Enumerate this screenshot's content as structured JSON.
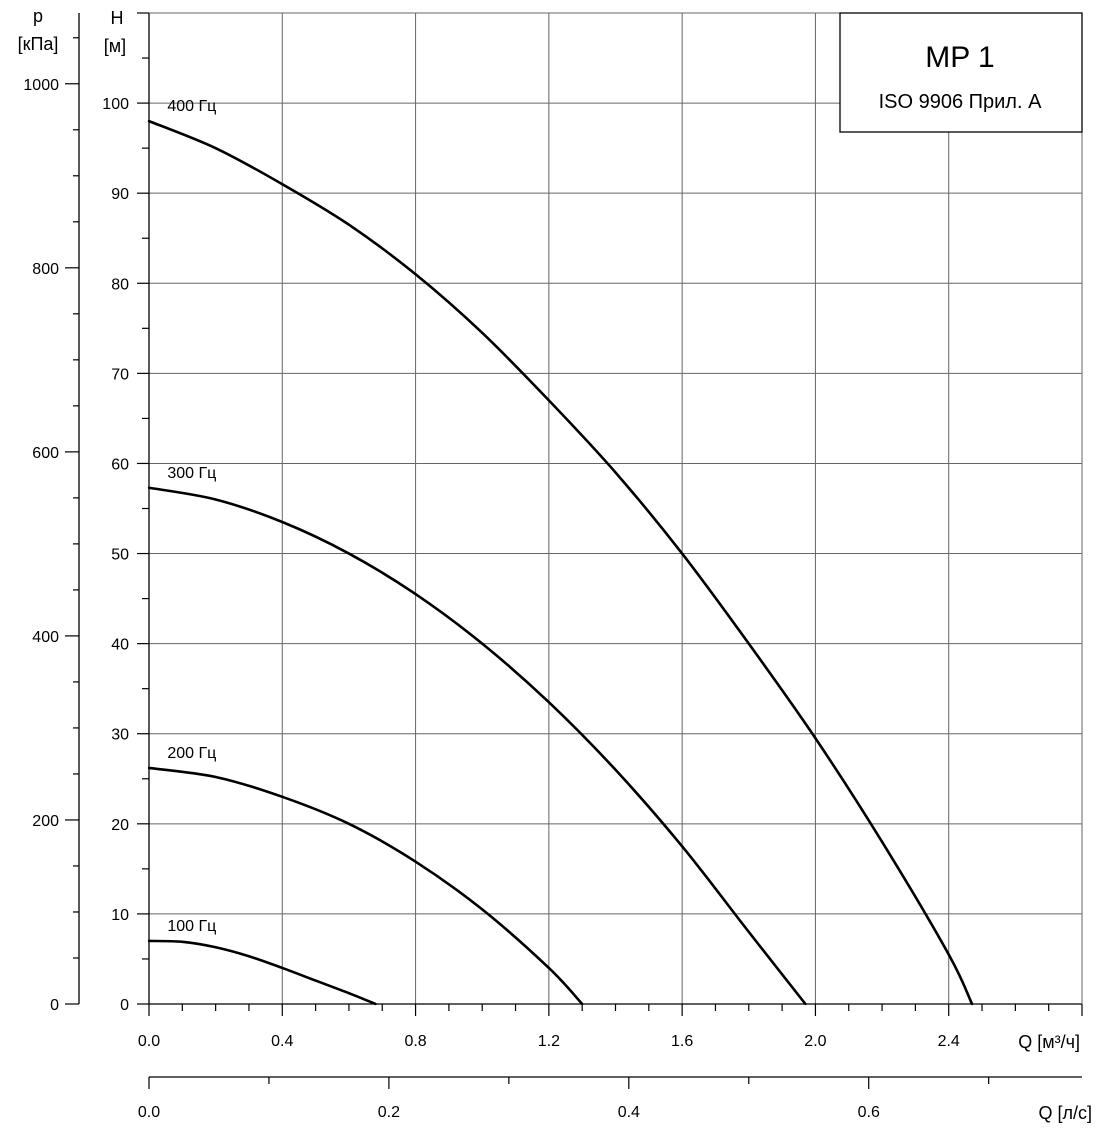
{
  "chart_data": {
    "type": "line",
    "title": "MP 1",
    "subtitle": "ISO 9906 Прил. A",
    "x_axis": {
      "label": "Q [м³/ч]",
      "range": [
        0,
        2.8
      ],
      "ticks": [
        0.0,
        0.4,
        0.8,
        1.2,
        1.6,
        2.0,
        2.4
      ],
      "tick_labels": [
        "0.0",
        "0.4",
        "0.8",
        "1.2",
        "1.6",
        "2.0",
        "2.4"
      ],
      "minor_step": 0.1
    },
    "x2_axis": {
      "label": "Q [л/с]",
      "range": [
        0,
        0.7778
      ],
      "ticks": [
        0.0,
        0.2,
        0.4,
        0.6
      ],
      "tick_labels": [
        "0.0",
        "0.2",
        "0.4",
        "0.6"
      ],
      "minor_step": 0.1
    },
    "y_axis": {
      "label_line1": "H",
      "label_line2": "[м]",
      "range": [
        0,
        110
      ],
      "ticks": [
        0,
        10,
        20,
        30,
        40,
        50,
        60,
        70,
        80,
        90,
        100
      ],
      "tick_labels": [
        "0",
        "10",
        "20",
        "30",
        "40",
        "50",
        "60",
        "70",
        "80",
        "90",
        "100"
      ],
      "minor_step": 5
    },
    "y2_axis": {
      "label_line1": "p",
      "label_line2": "[кПа]",
      "ticks": [
        0,
        200,
        400,
        600,
        800,
        1000
      ],
      "tick_labels": [
        "0",
        "200",
        "400",
        "600",
        "800",
        "1000"
      ],
      "minor_step": 50,
      "kpa_per_m": 9.79
    },
    "grid": true,
    "series": [
      {
        "name": "400 Гц",
        "x": [
          0.0,
          0.2,
          0.4,
          0.6,
          0.8,
          1.0,
          1.2,
          1.4,
          1.6,
          1.8,
          2.0,
          2.2,
          2.4,
          2.47
        ],
        "y": [
          98,
          95,
          91,
          86.5,
          81,
          74.5,
          67,
          59,
          50,
          40,
          29.5,
          18,
          5.5,
          0
        ]
      },
      {
        "name": "300 Гц",
        "x": [
          0.0,
          0.2,
          0.4,
          0.6,
          0.8,
          1.0,
          1.2,
          1.4,
          1.6,
          1.8,
          1.97
        ],
        "y": [
          57.3,
          56,
          53.5,
          50,
          45.5,
          40,
          33.5,
          26,
          17.5,
          8,
          0
        ]
      },
      {
        "name": "200 Гц",
        "x": [
          0.0,
          0.2,
          0.4,
          0.6,
          0.8,
          1.0,
          1.2,
          1.3
        ],
        "y": [
          26.2,
          25.2,
          23,
          20,
          15.8,
          10.5,
          4,
          0
        ]
      },
      {
        "name": "100 Гц",
        "x": [
          0.0,
          0.1,
          0.2,
          0.3,
          0.4,
          0.5,
          0.6,
          0.68
        ],
        "y": [
          7,
          6.9,
          6.3,
          5.3,
          4,
          2.6,
          1.2,
          0
        ]
      }
    ]
  }
}
